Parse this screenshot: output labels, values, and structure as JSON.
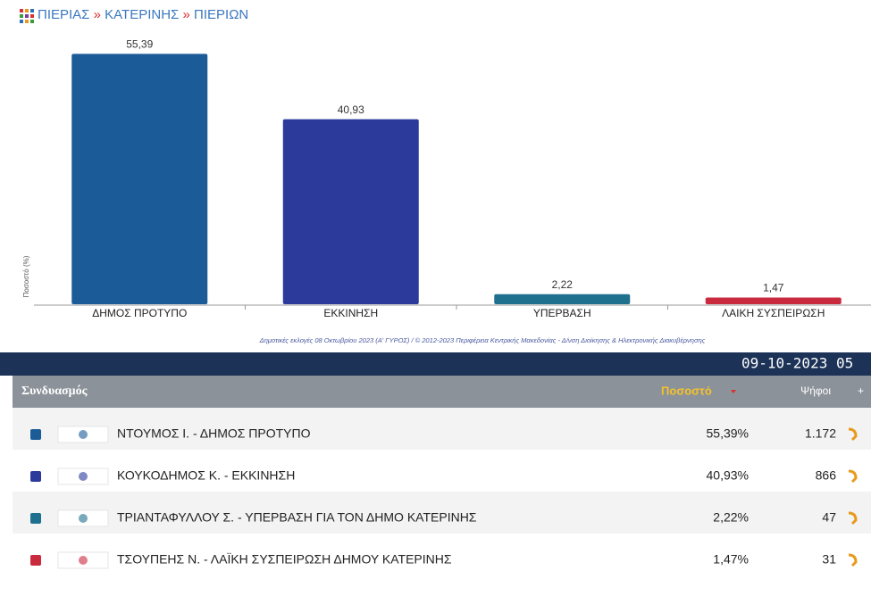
{
  "breadcrumb": [
    "ΠΙΕΡΙΑΣ",
    "ΚΑΤΕΡΙΝΗΣ",
    "ΠΙΕΡΙΩΝ"
  ],
  "chart_data": {
    "type": "bar",
    "ylabel": "Ποσοστό (%)",
    "categories": [
      "ΔΗΜΟΣ ΠΡΟΤΥΠΟ",
      "ΕΚΚΙΝΗΣΗ",
      "ΥΠΕΡΒΑΣΗ",
      "ΛΑΙΚΗ ΣΥΣΠΕΙΡΩΣΗ"
    ],
    "values": [
      55.39,
      40.93,
      2.22,
      1.47
    ],
    "value_labels": [
      "55,39",
      "40,93",
      "2,22",
      "1,47"
    ],
    "colors": [
      "#1b5b97",
      "#2b3a9b",
      "#1f6f8f",
      "#c92a3e"
    ],
    "ylim": [
      0,
      60
    ]
  },
  "credit": "Δημοτικές εκλογές 08 Οκτωβρίου 2023 (Α' ΓΥΡΟΣ) / © 2012-2023 Περιφέρεια Κεντρικής Μακεδονίας - Δ/νση Διοίκησης & Ηλεκτρονικής Διακυβέρνησης",
  "timestamp": "09-10-2023 05",
  "table": {
    "headers": [
      "Συνδυασμός",
      "Ποσοστό",
      "Ψήφοι",
      "+"
    ],
    "rows": [
      [
        "ΝΤΟΥΜΟΣ Ι. - ΔΗΜΟΣ ΠΡΟΤΥΠΟ",
        "55,39%",
        "1.172"
      ],
      [
        "ΚΟΥΚΟΔΗΜΟΣ Κ. - ΕΚΚΙΝΗΣΗ",
        "40,93%",
        "866"
      ],
      [
        "ΤΡΙΑΝΤΑΦΥΛΛΟΥ Σ. - ΥΠΕΡΒΑΣΗ ΓΙΑ ΤΟΝ ΔΗΜΟ ΚΑΤΕΡΙΝΗΣ",
        "2,22%",
        "47"
      ],
      [
        "ΤΣΟΥΠΕΗΣ Ν. - ΛΑΪΚΗ ΣΥΣΠΕΙΡΩΣΗ ΔΗΜΟΥ ΚΑΤΕΡΙΝΗΣ",
        "1,47%",
        "31"
      ]
    ],
    "row_colors": [
      "#1b5b97",
      "#2b3a9b",
      "#1f6f8f",
      "#c92a3e"
    ]
  }
}
